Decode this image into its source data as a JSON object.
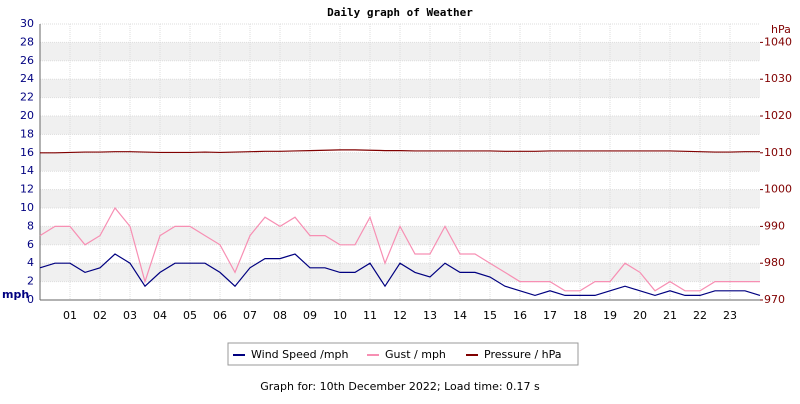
{
  "chart_data": {
    "type": "line",
    "title": "Daily graph of Weather",
    "y_label": "mph",
    "y2_label": "hPa",
    "x": [
      0,
      0.5,
      1,
      1.5,
      2,
      2.5,
      3,
      3.5,
      4,
      4.5,
      5,
      5.5,
      6,
      6.5,
      7,
      7.5,
      8,
      8.5,
      9,
      9.5,
      10,
      10.5,
      11,
      11.5,
      12,
      12.5,
      13,
      13.5,
      14,
      14.5,
      15,
      15.5,
      16,
      16.5,
      17,
      17.5,
      18,
      18.5,
      19,
      19.5,
      20,
      20.5,
      21,
      21.5,
      22,
      22.5,
      23,
      23.5,
      24
    ],
    "xlim": [
      0,
      24
    ],
    "xticks": [
      {
        "value": 1,
        "label": "01"
      },
      {
        "value": 2,
        "label": "02"
      },
      {
        "value": 3,
        "label": "03"
      },
      {
        "value": 4,
        "label": "04"
      },
      {
        "value": 5,
        "label": "05"
      },
      {
        "value": 6,
        "label": "06"
      },
      {
        "value": 7,
        "label": "07"
      },
      {
        "value": 8,
        "label": "08"
      },
      {
        "value": 9,
        "label": "09"
      },
      {
        "value": 10,
        "label": "10"
      },
      {
        "value": 11,
        "label": "11"
      },
      {
        "value": 12,
        "label": "12"
      },
      {
        "value": 13,
        "label": "13"
      },
      {
        "value": 14,
        "label": "14"
      },
      {
        "value": 15,
        "label": "15"
      },
      {
        "value": 16,
        "label": "16"
      },
      {
        "value": 17,
        "label": "17"
      },
      {
        "value": 18,
        "label": "18"
      },
      {
        "value": 19,
        "label": "19"
      },
      {
        "value": 20,
        "label": "20"
      },
      {
        "value": 21,
        "label": "21"
      },
      {
        "value": 22,
        "label": "22"
      },
      {
        "value": 23,
        "label": "23"
      }
    ],
    "ylim": [
      0,
      30
    ],
    "yticks": [
      0,
      2,
      4,
      6,
      8,
      10,
      12,
      14,
      16,
      18,
      20,
      22,
      24,
      26,
      28,
      30
    ],
    "y2lim": [
      970,
      1045
    ],
    "y2ticks": [
      970,
      980,
      990,
      1000,
      1010,
      1020,
      1030,
      1040
    ],
    "grid": true,
    "series": [
      {
        "name": "Wind Speed /mph",
        "color": "#000080",
        "values": [
          3.5,
          4,
          4,
          3,
          3.5,
          5,
          4,
          1.5,
          3,
          4,
          4,
          4,
          3,
          1.5,
          3.5,
          4.5,
          4.5,
          5,
          3.5,
          3.5,
          3,
          3,
          4,
          1.5,
          4,
          3,
          2.5,
          4,
          3,
          3,
          2.5,
          1.5,
          1,
          0.5,
          1,
          0.5,
          0.5,
          0.5,
          1,
          1.5,
          1,
          0.5,
          1,
          0.5,
          0.5,
          1,
          1,
          1,
          0.5
        ]
      },
      {
        "name": "Gust / mph",
        "color": "#f78fb3",
        "values": [
          7,
          8,
          8,
          6,
          7,
          10,
          8,
          2,
          7,
          8,
          8,
          7,
          6,
          3,
          7,
          9,
          8,
          9,
          7,
          7,
          6,
          6,
          9,
          4,
          8,
          5,
          5,
          8,
          5,
          5,
          4,
          3,
          2,
          2,
          2,
          1,
          1,
          2,
          2,
          4,
          3,
          1,
          2,
          1,
          1,
          2,
          2,
          2,
          2
        ]
      },
      {
        "name": "Pressure / hPa",
        "color": "#800000",
        "axis": "y2",
        "values": [
          1010,
          1010,
          1010.1,
          1010.2,
          1010.2,
          1010.3,
          1010.3,
          1010.2,
          1010.1,
          1010.1,
          1010.1,
          1010.2,
          1010.1,
          1010.2,
          1010.3,
          1010.4,
          1010.4,
          1010.5,
          1010.6,
          1010.7,
          1010.8,
          1010.8,
          1010.7,
          1010.6,
          1010.6,
          1010.5,
          1010.5,
          1010.5,
          1010.5,
          1010.5,
          1010.5,
          1010.4,
          1010.4,
          1010.4,
          1010.5,
          1010.5,
          1010.5,
          1010.5,
          1010.5,
          1010.5,
          1010.5,
          1010.5,
          1010.5,
          1010.4,
          1010.3,
          1010.2,
          1010.2,
          1010.3,
          1010.3
        ]
      }
    ],
    "footer": "Graph for: 10th December 2022; Load time: 0.17 s"
  }
}
